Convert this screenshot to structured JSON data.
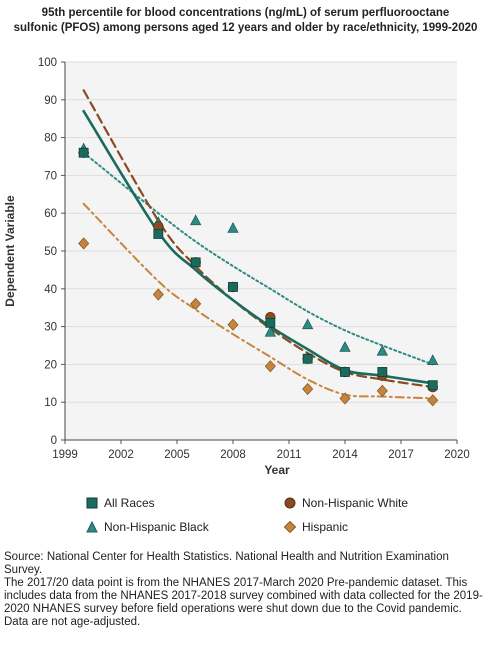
{
  "chart_data": {
    "type": "scatter",
    "title_lines": [
      "95th percentile for blood concentrations (ng/mL) of serum perfluorooctane",
      "sulfonic (PFOS) among persons aged 12 years and older by race/ethnicity, 1999-2020"
    ],
    "xlabel": "Year",
    "ylabel": "Dependent Variable",
    "xlim": [
      1999,
      2020
    ],
    "ylim": [
      0,
      100
    ],
    "x_ticks": [
      1999,
      2002,
      2005,
      2008,
      2011,
      2014,
      2017,
      2020
    ],
    "y_ticks": [
      0,
      10,
      20,
      30,
      40,
      50,
      60,
      70,
      80,
      90,
      100
    ],
    "grid": "horizontal",
    "legend_position": "bottom",
    "series": [
      {
        "name": "All Races",
        "marker": "square",
        "color": "#1a6b5e",
        "trend_style": "solid",
        "x": [
          2000,
          2004,
          2006,
          2008,
          2010,
          2012,
          2014,
          2016,
          2018.7
        ],
        "y": [
          76,
          54.5,
          47,
          40.5,
          31,
          21.5,
          18,
          18,
          14.5
        ],
        "trend": [
          [
            2000,
            87
          ],
          [
            2004,
            55
          ],
          [
            2006,
            45
          ],
          [
            2008,
            37
          ],
          [
            2010,
            30
          ],
          [
            2012,
            24
          ],
          [
            2014,
            18.5
          ],
          [
            2016,
            17
          ],
          [
            2018.7,
            15
          ]
        ]
      },
      {
        "name": "Non-Hispanic White",
        "marker": "circle",
        "color": "#8b4a1f",
        "trend_style": "dashed",
        "x": [
          2000,
          2004,
          2006,
          2008,
          2010,
          2012,
          2014,
          2016,
          2018.7
        ],
        "y": [
          76,
          56.5,
          47,
          40.5,
          32.5,
          21.5,
          18,
          17,
          14
        ],
        "trend": [
          [
            2000,
            92.5
          ],
          [
            2004,
            58
          ],
          [
            2006,
            46
          ],
          [
            2008,
            37
          ],
          [
            2010,
            29.5
          ],
          [
            2012,
            23
          ],
          [
            2014,
            18
          ],
          [
            2016,
            16
          ],
          [
            2018.7,
            14
          ]
        ]
      },
      {
        "name": "Non-Hispanic Black",
        "marker": "triangle",
        "color": "#2e8b84",
        "trend_style": "dotted",
        "x": [
          2000,
          2004,
          2006,
          2008,
          2010,
          2012,
          2014,
          2016,
          2018.7
        ],
        "y": [
          77,
          57.5,
          58,
          56,
          28.5,
          30.5,
          24.5,
          23.5,
          21
        ],
        "trend": [
          [
            2000,
            76
          ],
          [
            2004,
            60
          ],
          [
            2006,
            52.5
          ],
          [
            2008,
            46
          ],
          [
            2010,
            40
          ],
          [
            2012,
            34
          ],
          [
            2014,
            29
          ],
          [
            2016,
            25
          ],
          [
            2018.7,
            20
          ]
        ]
      },
      {
        "name": "Hispanic",
        "marker": "diamond",
        "color": "#c8843e",
        "trend_style": "dashdot",
        "x": [
          2000,
          2004,
          2006,
          2008,
          2010,
          2012,
          2014,
          2016,
          2018.7
        ],
        "y": [
          52,
          38.5,
          36,
          30.5,
          19.5,
          13.5,
          11,
          13,
          10.5
        ],
        "trend": [
          [
            2000,
            62.5
          ],
          [
            2004,
            42
          ],
          [
            2006,
            34.5
          ],
          [
            2008,
            28
          ],
          [
            2010,
            22
          ],
          [
            2012,
            16
          ],
          [
            2014,
            12
          ],
          [
            2016,
            11.5
          ],
          [
            2018.7,
            11
          ]
        ]
      }
    ]
  },
  "notes": [
    "Source: National Center for Health Statistics. National Health and Nutrition Examination Survey.",
    "The 2017/20 data point is from the NHANES 2017-March 2020 Pre-pandemic dataset. This includes data from the NHANES 2017-2018 survey combined with data collected for the 2019-2020 NHANES survey before field operations were shut down due to the Covid pandemic.",
    "Data are not age-adjusted."
  ]
}
